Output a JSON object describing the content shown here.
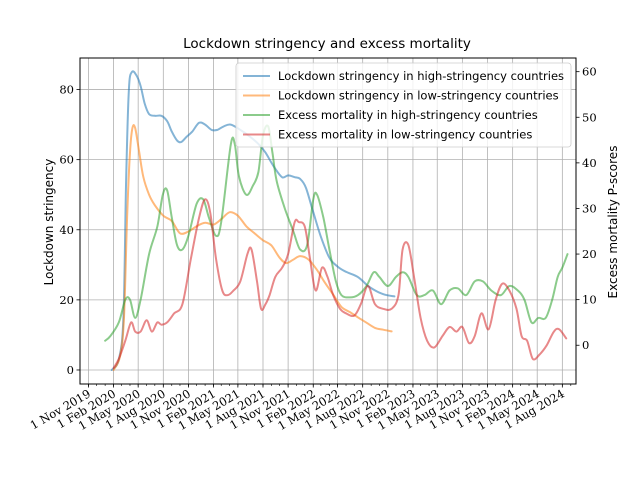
{
  "chart_data": {
    "type": "line",
    "title": "Lockdown stringency and excess mortality",
    "xlabel": "",
    "ylabel": "Lockdown stringency",
    "y2label": "Excess mortality P-scores",
    "x_range": [
      "2019-10-01",
      "2024-09-20"
    ],
    "ylim": [
      -4,
      89
    ],
    "y2lim": [
      -8.5,
      63
    ],
    "y_ticks": [
      0,
      20,
      40,
      60,
      80
    ],
    "y2_ticks": [
      0,
      10,
      20,
      30,
      40,
      50,
      60
    ],
    "x_ticks": [
      {
        "date": "2019-11-01",
        "label": "1 Nov 2019"
      },
      {
        "date": "2020-02-01",
        "label": "1 Feb 2020"
      },
      {
        "date": "2020-05-01",
        "label": "1 May 2020"
      },
      {
        "date": "2020-08-01",
        "label": "1 Aug 2020"
      },
      {
        "date": "2020-11-01",
        "label": "1 Nov 2020"
      },
      {
        "date": "2021-02-01",
        "label": "1 Feb 2021"
      },
      {
        "date": "2021-05-01",
        "label": "1 May 2021"
      },
      {
        "date": "2021-08-01",
        "label": "1 Aug 2021"
      },
      {
        "date": "2021-11-01",
        "label": "1 Nov 2021"
      },
      {
        "date": "2022-02-01",
        "label": "1 Feb 2022"
      },
      {
        "date": "2022-05-01",
        "label": "1 May 2022"
      },
      {
        "date": "2022-08-01",
        "label": "1 Aug 2022"
      },
      {
        "date": "2022-11-01",
        "label": "1 Nov 2022"
      },
      {
        "date": "2023-02-01",
        "label": "1 Feb 2023"
      },
      {
        "date": "2023-05-01",
        "label": "1 May 2023"
      },
      {
        "date": "2023-08-01",
        "label": "1 Aug 2023"
      },
      {
        "date": "2023-11-01",
        "label": "1 Nov 2023"
      },
      {
        "date": "2024-02-01",
        "label": "1 Feb 2024"
      },
      {
        "date": "2024-05-01",
        "label": "1 May 2024"
      },
      {
        "date": "2024-08-01",
        "label": "1 Aug 2024"
      }
    ],
    "grid": true,
    "legend_position": "top-right",
    "series": [
      {
        "name": "Lockdown stringency in high-stringency countries",
        "axis": "left",
        "color": "#1f77b4",
        "points": [
          [
            "2020-01-25",
            0
          ],
          [
            "2020-02-20",
            3
          ],
          [
            "2020-03-08",
            15
          ],
          [
            "2020-03-18",
            55
          ],
          [
            "2020-03-28",
            80
          ],
          [
            "2020-04-08",
            85
          ],
          [
            "2020-04-25",
            84
          ],
          [
            "2020-05-10",
            81
          ],
          [
            "2020-05-25",
            76
          ],
          [
            "2020-06-10",
            73
          ],
          [
            "2020-07-01",
            72.5
          ],
          [
            "2020-07-25",
            72.5
          ],
          [
            "2020-08-15",
            71
          ],
          [
            "2020-09-01",
            68
          ],
          [
            "2020-09-20",
            65.5
          ],
          [
            "2020-10-05",
            65
          ],
          [
            "2020-10-25",
            66.5
          ],
          [
            "2020-11-15",
            68
          ],
          [
            "2020-12-10",
            70.5
          ],
          [
            "2021-01-01",
            70
          ],
          [
            "2021-01-25",
            68.5
          ],
          [
            "2021-02-15",
            68.5
          ],
          [
            "2021-03-10",
            69.5
          ],
          [
            "2021-04-05",
            70
          ],
          [
            "2021-05-10",
            68.5
          ],
          [
            "2021-06-15",
            66.5
          ],
          [
            "2021-07-15",
            64.5
          ],
          [
            "2021-08-10",
            62
          ],
          [
            "2021-09-10",
            58
          ],
          [
            "2021-10-10",
            55
          ],
          [
            "2021-11-01",
            55.5
          ],
          [
            "2021-11-25",
            55
          ],
          [
            "2021-12-15",
            54.5
          ],
          [
            "2022-01-05",
            52
          ],
          [
            "2022-02-01",
            45
          ],
          [
            "2022-03-01",
            38
          ],
          [
            "2022-04-01",
            32
          ],
          [
            "2022-05-01",
            29.5
          ],
          [
            "2022-06-01",
            28
          ],
          [
            "2022-07-15",
            26.5
          ],
          [
            "2022-08-20",
            24
          ],
          [
            "2022-09-20",
            22.5
          ],
          [
            "2022-10-20",
            21.5
          ],
          [
            "2022-11-25",
            21
          ]
        ]
      },
      {
        "name": "Lockdown stringency in low-stringency countries",
        "axis": "left",
        "color": "#ff7f0e",
        "points": [
          [
            "2020-02-01",
            0
          ],
          [
            "2020-02-25",
            4
          ],
          [
            "2020-03-10",
            15
          ],
          [
            "2020-03-22",
            45
          ],
          [
            "2020-04-01",
            62
          ],
          [
            "2020-04-10",
            69
          ],
          [
            "2020-04-20",
            69
          ],
          [
            "2020-05-05",
            62
          ],
          [
            "2020-05-20",
            55
          ],
          [
            "2020-06-10",
            50
          ],
          [
            "2020-07-01",
            47
          ],
          [
            "2020-08-01",
            44
          ],
          [
            "2020-09-01",
            42.5
          ],
          [
            "2020-10-01",
            39
          ],
          [
            "2020-11-01",
            39.5
          ],
          [
            "2020-12-01",
            41
          ],
          [
            "2021-01-01",
            42
          ],
          [
            "2021-02-01",
            41.5
          ],
          [
            "2021-03-01",
            43
          ],
          [
            "2021-04-01",
            45
          ],
          [
            "2021-05-01",
            44
          ],
          [
            "2021-06-01",
            41
          ],
          [
            "2021-07-01",
            39
          ],
          [
            "2021-08-01",
            37
          ],
          [
            "2021-09-01",
            35.5
          ],
          [
            "2021-10-01",
            32
          ],
          [
            "2021-10-25",
            30.5
          ],
          [
            "2021-11-20",
            31.5
          ],
          [
            "2021-12-15",
            32.5
          ],
          [
            "2022-01-15",
            31.5
          ],
          [
            "2022-02-15",
            28.5
          ],
          [
            "2022-03-15",
            25
          ],
          [
            "2022-04-15",
            21.5
          ],
          [
            "2022-05-15",
            18
          ],
          [
            "2022-06-15",
            16.5
          ],
          [
            "2022-07-15",
            15
          ],
          [
            "2022-08-15",
            13.5
          ],
          [
            "2022-09-15",
            12
          ],
          [
            "2022-10-15",
            11.5
          ],
          [
            "2022-11-15",
            11
          ]
        ]
      },
      {
        "name": "Excess mortality in high-stringency countries",
        "axis": "right",
        "color": "#2ca02c",
        "points": [
          [
            "2020-01-01",
            1
          ],
          [
            "2020-01-20",
            2
          ],
          [
            "2020-02-20",
            5
          ],
          [
            "2020-03-15",
            10
          ],
          [
            "2020-04-01",
            10
          ],
          [
            "2020-04-20",
            6
          ],
          [
            "2020-05-10",
            10
          ],
          [
            "2020-06-10",
            20
          ],
          [
            "2020-07-10",
            26
          ],
          [
            "2020-07-30",
            33
          ],
          [
            "2020-08-15",
            34
          ],
          [
            "2020-09-01",
            28
          ],
          [
            "2020-09-20",
            22
          ],
          [
            "2020-10-10",
            21
          ],
          [
            "2020-11-01",
            24
          ],
          [
            "2020-12-01",
            31
          ],
          [
            "2020-12-25",
            32
          ],
          [
            "2021-01-15",
            28
          ],
          [
            "2021-02-10",
            24
          ],
          [
            "2021-03-01",
            27
          ],
          [
            "2021-04-05",
            44
          ],
          [
            "2021-04-20",
            44
          ],
          [
            "2021-05-05",
            37
          ],
          [
            "2021-06-01",
            33
          ],
          [
            "2021-06-25",
            35
          ],
          [
            "2021-07-15",
            38
          ],
          [
            "2021-08-01",
            46
          ],
          [
            "2021-08-20",
            48
          ],
          [
            "2021-09-05",
            42
          ],
          [
            "2021-09-20",
            36
          ],
          [
            "2021-10-20",
            30
          ],
          [
            "2021-11-20",
            25
          ],
          [
            "2021-12-15",
            21
          ],
          [
            "2022-01-10",
            22
          ],
          [
            "2022-02-01",
            32
          ],
          [
            "2022-02-15",
            33
          ],
          [
            "2022-03-10",
            28
          ],
          [
            "2022-04-01",
            21
          ],
          [
            "2022-04-25",
            14
          ],
          [
            "2022-05-15",
            11
          ],
          [
            "2022-06-15",
            10.5
          ],
          [
            "2022-07-15",
            11
          ],
          [
            "2022-08-15",
            13
          ],
          [
            "2022-09-10",
            16
          ],
          [
            "2022-10-01",
            15
          ],
          [
            "2022-11-01",
            13
          ],
          [
            "2022-12-01",
            15
          ],
          [
            "2022-12-25",
            16
          ],
          [
            "2023-01-15",
            15
          ],
          [
            "2023-02-15",
            11
          ],
          [
            "2023-03-15",
            11
          ],
          [
            "2023-04-15",
            12
          ],
          [
            "2023-05-15",
            9
          ],
          [
            "2023-06-15",
            12
          ],
          [
            "2023-07-15",
            12.5
          ],
          [
            "2023-08-15",
            11
          ],
          [
            "2023-09-15",
            14
          ],
          [
            "2023-10-15",
            14
          ],
          [
            "2023-11-15",
            12
          ],
          [
            "2023-12-20",
            11
          ],
          [
            "2024-01-20",
            13
          ],
          [
            "2024-02-20",
            12
          ],
          [
            "2024-03-15",
            10
          ],
          [
            "2024-04-10",
            5
          ],
          [
            "2024-05-05",
            6
          ],
          [
            "2024-06-01",
            6
          ],
          [
            "2024-06-25",
            10
          ],
          [
            "2024-07-15",
            15
          ],
          [
            "2024-08-01",
            17
          ],
          [
            "2024-08-20",
            20
          ]
        ]
      },
      {
        "name": "Excess mortality in low-stringency countries",
        "axis": "right",
        "color": "#d62728",
        "points": [
          [
            "2020-02-01",
            -5
          ],
          [
            "2020-02-20",
            -3
          ],
          [
            "2020-03-15",
            1
          ],
          [
            "2020-04-05",
            5
          ],
          [
            "2020-04-20",
            3
          ],
          [
            "2020-05-10",
            3
          ],
          [
            "2020-06-01",
            5.5
          ],
          [
            "2020-06-20",
            3
          ],
          [
            "2020-07-10",
            5
          ],
          [
            "2020-07-25",
            4.5
          ],
          [
            "2020-08-15",
            5
          ],
          [
            "2020-09-10",
            7
          ],
          [
            "2020-10-10",
            9
          ],
          [
            "2020-11-10",
            19
          ],
          [
            "2020-12-10",
            28
          ],
          [
            "2021-01-01",
            32
          ],
          [
            "2021-01-20",
            29
          ],
          [
            "2021-02-10",
            19
          ],
          [
            "2021-03-05",
            12
          ],
          [
            "2021-03-25",
            11
          ],
          [
            "2021-04-15",
            12
          ],
          [
            "2021-05-10",
            14
          ],
          [
            "2021-06-05",
            20
          ],
          [
            "2021-06-20",
            21
          ],
          [
            "2021-07-10",
            14
          ],
          [
            "2021-07-25",
            8
          ],
          [
            "2021-08-10",
            9
          ],
          [
            "2021-08-25",
            11
          ],
          [
            "2021-09-15",
            15
          ],
          [
            "2021-10-10",
            17
          ],
          [
            "2021-11-01",
            20
          ],
          [
            "2021-11-25",
            27
          ],
          [
            "2021-12-10",
            27
          ],
          [
            "2022-01-01",
            26
          ],
          [
            "2022-01-20",
            19
          ],
          [
            "2022-02-10",
            12
          ],
          [
            "2022-03-05",
            17
          ],
          [
            "2022-03-25",
            15
          ],
          [
            "2022-04-15",
            11
          ],
          [
            "2022-05-10",
            8
          ],
          [
            "2022-06-01",
            7
          ],
          [
            "2022-07-01",
            6.5
          ],
          [
            "2022-07-25",
            9
          ],
          [
            "2022-08-20",
            13
          ],
          [
            "2022-09-15",
            9
          ],
          [
            "2022-10-15",
            8
          ],
          [
            "2022-11-15",
            8
          ],
          [
            "2022-12-10",
            11
          ],
          [
            "2022-12-25",
            21
          ],
          [
            "2023-01-15",
            22
          ],
          [
            "2023-02-05",
            15
          ],
          [
            "2023-03-01",
            6
          ],
          [
            "2023-03-25",
            1
          ],
          [
            "2023-04-20",
            -0.5
          ],
          [
            "2023-05-20",
            2
          ],
          [
            "2023-06-15",
            4
          ],
          [
            "2023-07-10",
            3
          ],
          [
            "2023-08-01",
            4
          ],
          [
            "2023-08-25",
            0.5
          ],
          [
            "2023-09-15",
            2
          ],
          [
            "2023-10-10",
            7
          ],
          [
            "2023-11-05",
            3.5
          ],
          [
            "2023-12-01",
            10
          ],
          [
            "2023-12-25",
            13.5
          ],
          [
            "2024-01-20",
            12
          ],
          [
            "2024-02-15",
            8
          ],
          [
            "2024-03-05",
            2
          ],
          [
            "2024-03-25",
            1
          ],
          [
            "2024-04-15",
            -3
          ],
          [
            "2024-05-10",
            -2
          ],
          [
            "2024-06-05",
            0
          ],
          [
            "2024-07-01",
            3
          ],
          [
            "2024-07-20",
            3.5
          ],
          [
            "2024-08-15",
            1.5
          ]
        ]
      }
    ]
  }
}
